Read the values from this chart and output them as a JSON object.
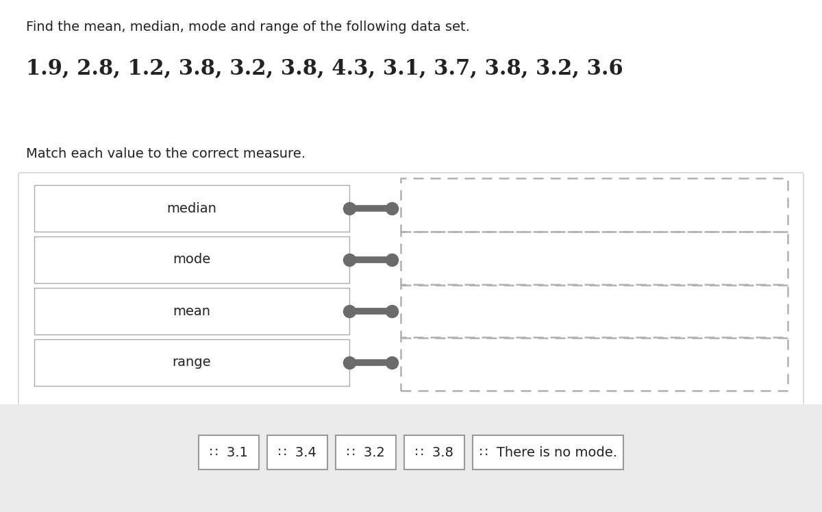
{
  "title_text": "Find the mean, median, mode and range of the following data set.",
  "data_set_text": "1.9, 2.8, 1.2, 3.8, 3.2, 3.8, 4.3, 3.1, 3.7, 3.8, 3.2, 3.6",
  "match_text": "Match each value to the correct measure.",
  "measures": [
    "median",
    "mode",
    "mean",
    "range"
  ],
  "answer_labels": [
    "∷  3.1",
    "∷  3.4",
    "∷  3.2",
    "∷  3.8",
    "∷  There is no mode."
  ],
  "bg_color": "#ffffff",
  "box_color": "#ffffff",
  "box_border": "#aaaaaa",
  "dashed_border": "#b0b0b0",
  "connector_color": "#6b6b6b",
  "answer_box_border": "#999999",
  "panel_bg": "#ebebeb",
  "text_color": "#222222",
  "title_fontsize": 14,
  "data_fontsize": 22,
  "match_fontsize": 14,
  "measure_fontsize": 14,
  "answer_fontsize": 14
}
